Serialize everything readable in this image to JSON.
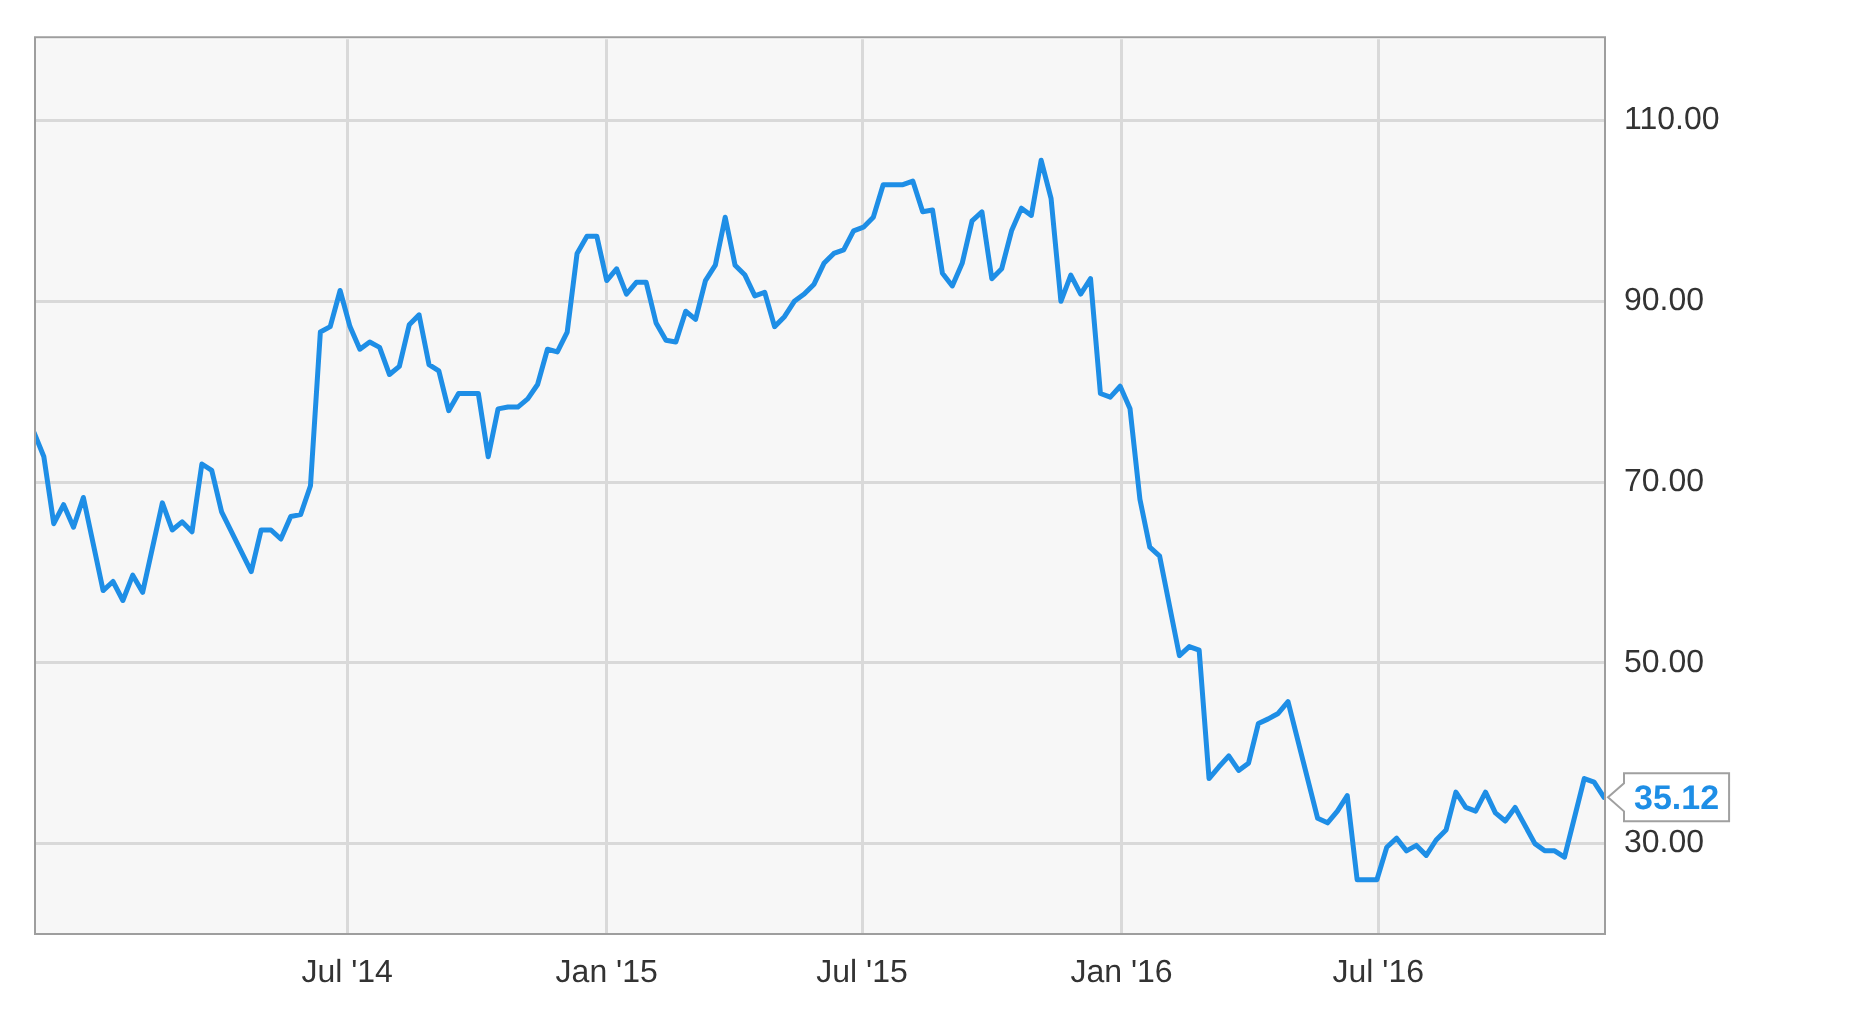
{
  "chart_data": {
    "type": "line",
    "xlim": [
      "2013-11-21",
      "2016-12-08"
    ],
    "ylim": [
      20,
      119
    ],
    "xticks": [
      {
        "value": "2014-07-01",
        "label": "Jul '14"
      },
      {
        "value": "2015-01-01",
        "label": "Jan '15"
      },
      {
        "value": "2015-07-01",
        "label": "Jul '15"
      },
      {
        "value": "2016-01-01",
        "label": "Jan '16"
      },
      {
        "value": "2016-07-01",
        "label": "Jul '16"
      }
    ],
    "yticks": [
      {
        "value": 30,
        "label": "30.00"
      },
      {
        "value": 50,
        "label": "50.00"
      },
      {
        "value": 70,
        "label": "70.00"
      },
      {
        "value": 90,
        "label": "90.00"
      },
      {
        "value": 110,
        "label": "110.00"
      }
    ],
    "grid": true,
    "legend": false,
    "marker": "none",
    "line_style": "solid",
    "annotations": [
      {
        "text": "35.12",
        "x": "2016-12-08",
        "y": 35.12
      }
    ],
    "series": [
      {
        "color": "#1e8ee6",
        "x": [
          "2013-11-21",
          "2013-11-28",
          "2013-12-05",
          "2013-12-12",
          "2013-12-19",
          "2013-12-26",
          "2014-01-09",
          "2014-01-16",
          "2014-01-23",
          "2014-01-30",
          "2014-02-06",
          "2014-02-20",
          "2014-02-27",
          "2014-03-06",
          "2014-03-13",
          "2014-03-20",
          "2014-03-27",
          "2014-04-03",
          "2014-04-24",
          "2014-05-01",
          "2014-05-08",
          "2014-05-15",
          "2014-05-22",
          "2014-05-29",
          "2014-06-05",
          "2014-06-12",
          "2014-06-19",
          "2014-06-26",
          "2014-07-03",
          "2014-07-10",
          "2014-07-17",
          "2014-07-24",
          "2014-07-31",
          "2014-08-07",
          "2014-08-14",
          "2014-08-21",
          "2014-08-28",
          "2014-09-04",
          "2014-09-11",
          "2014-09-18",
          "2014-09-25",
          "2014-10-02",
          "2014-10-09",
          "2014-10-16",
          "2014-10-23",
          "2014-10-30",
          "2014-11-06",
          "2014-11-13",
          "2014-11-20",
          "2014-11-27",
          "2014-12-04",
          "2014-12-11",
          "2014-12-18",
          "2014-12-25",
          "2015-01-01",
          "2015-01-08",
          "2015-01-15",
          "2015-01-22",
          "2015-01-29",
          "2015-02-05",
          "2015-02-12",
          "2015-02-19",
          "2015-02-26",
          "2015-03-05",
          "2015-03-12",
          "2015-03-19",
          "2015-03-26",
          "2015-04-02",
          "2015-04-09",
          "2015-04-16",
          "2015-04-23",
          "2015-04-30",
          "2015-05-07",
          "2015-05-14",
          "2015-05-21",
          "2015-05-28",
          "2015-06-04",
          "2015-06-11",
          "2015-06-18",
          "2015-06-25",
          "2015-07-02",
          "2015-07-09",
          "2015-07-16",
          "2015-07-30",
          "2015-08-06",
          "2015-08-13",
          "2015-08-20",
          "2015-08-27",
          "2015-09-03",
          "2015-09-10",
          "2015-09-17",
          "2015-09-24",
          "2015-10-01",
          "2015-10-08",
          "2015-10-15",
          "2015-10-22",
          "2015-10-29",
          "2015-11-05",
          "2015-11-12",
          "2015-11-19",
          "2015-11-26",
          "2015-12-03",
          "2015-12-10",
          "2015-12-17",
          "2015-12-24",
          "2015-12-31",
          "2016-01-07",
          "2016-01-14",
          "2016-01-21",
          "2016-01-28",
          "2016-02-11",
          "2016-02-18",
          "2016-02-25",
          "2016-03-03",
          "2016-03-10",
          "2016-03-17",
          "2016-03-24",
          "2016-03-31",
          "2016-04-07",
          "2016-04-14",
          "2016-04-21",
          "2016-04-28",
          "2016-05-19",
          "2016-05-26",
          "2016-06-02",
          "2016-06-09",
          "2016-06-16",
          "2016-06-23",
          "2016-06-30",
          "2016-07-07",
          "2016-07-14",
          "2016-07-21",
          "2016-07-28",
          "2016-08-04",
          "2016-08-11",
          "2016-08-18",
          "2016-08-25",
          "2016-09-01",
          "2016-09-08",
          "2016-09-15",
          "2016-09-22",
          "2016-09-29",
          "2016-10-06",
          "2016-10-20",
          "2016-10-27",
          "2016-11-03",
          "2016-11-10",
          "2016-11-24",
          "2016-12-01",
          "2016-12-08"
        ],
        "values": [
          75.5,
          72.8,
          65.4,
          67.5,
          65.0,
          68.3,
          58.0,
          59.0,
          56.9,
          59.7,
          57.8,
          67.7,
          64.7,
          65.6,
          64.5,
          72.0,
          71.3,
          66.7,
          60.1,
          64.7,
          64.7,
          63.7,
          66.2,
          66.4,
          69.6,
          86.6,
          87.2,
          91.2,
          87.2,
          84.7,
          85.5,
          84.9,
          81.9,
          82.8,
          87.4,
          88.5,
          83.0,
          82.3,
          77.9,
          79.8,
          79.8,
          79.8,
          72.8,
          78.1,
          78.3,
          78.3,
          79.2,
          80.8,
          84.7,
          84.4,
          86.6,
          95.3,
          97.2,
          97.2,
          92.3,
          93.6,
          90.8,
          92.1,
          92.1,
          87.6,
          85.7,
          85.5,
          88.9,
          88.0,
          92.3,
          94.0,
          99.3,
          94.0,
          92.9,
          90.6,
          91.0,
          87.2,
          88.3,
          90.0,
          90.8,
          91.9,
          94.2,
          95.3,
          95.7,
          97.8,
          98.2,
          99.3,
          102.9,
          102.9,
          103.3,
          99.9,
          100.1,
          93.1,
          91.7,
          94.2,
          98.9,
          99.9,
          92.5,
          93.6,
          97.8,
          100.3,
          99.5,
          105.6,
          101.4,
          90.0,
          92.9,
          90.8,
          92.5,
          79.8,
          79.4,
          80.6,
          78.1,
          68.1,
          62.8,
          61.8,
          50.8,
          51.8,
          51.4,
          37.2,
          38.5,
          39.7,
          38.1,
          38.9,
          43.3,
          43.8,
          44.4,
          45.7,
          32.8,
          32.3,
          33.6,
          35.3,
          26.0,
          26.0,
          26.0,
          29.6,
          30.6,
          29.2,
          29.8,
          28.7,
          30.4,
          31.5,
          35.7,
          34.0,
          33.6,
          35.7,
          33.4,
          32.5,
          34.0,
          30.0,
          29.2,
          29.2,
          28.5,
          37.2,
          36.8,
          35.12
        ]
      }
    ]
  }
}
